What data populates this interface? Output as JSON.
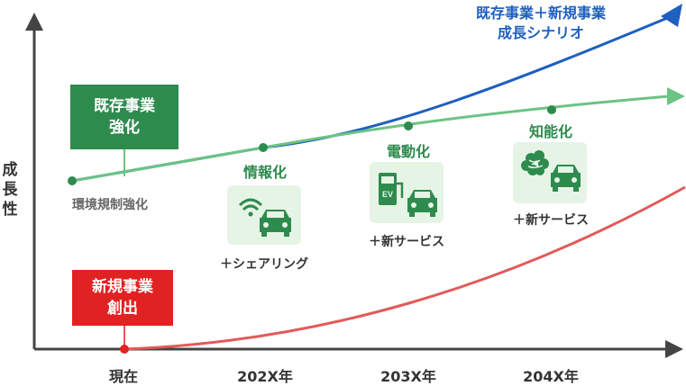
{
  "y_axis_label": [
    "成",
    "長",
    "性"
  ],
  "x_ticks": [
    "現在",
    "202X年",
    "203X年",
    "204X年"
  ],
  "boxes": {
    "existing": "既存事業\n強化",
    "new": "新規事業\n創出"
  },
  "regulation_label": "環境規制強化",
  "scenario_label_line1": "既存事業＋新規事業",
  "scenario_label_line2": "成長シナリオ",
  "milestones": [
    {
      "label": "情報化",
      "service": "＋シェアリング",
      "icon": "wifi-car-icon"
    },
    {
      "label": "電動化",
      "service": "＋新サービス",
      "icon": "ev-charger-car-icon"
    },
    {
      "label": "知能化",
      "service": "＋新サービス",
      "icon": "brain-car-icon"
    }
  ],
  "colors": {
    "axis": "#444444",
    "existing_line": "#4cb56a",
    "combined_line": "#1e5fc0",
    "new_line": "#e35a5a",
    "existing_box": "#2e8b4e",
    "new_box": "#e02222"
  }
}
